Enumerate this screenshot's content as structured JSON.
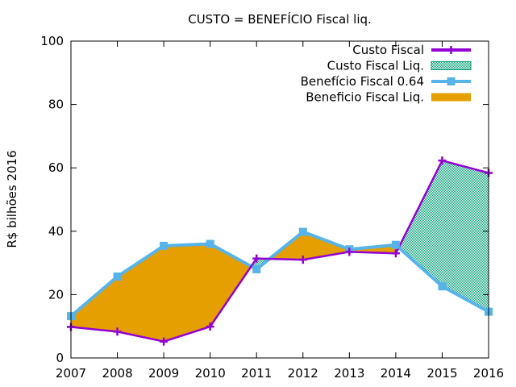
{
  "chart_data": {
    "type": "line",
    "title": "CUSTO = BENEFÍCIO Fiscal liq.",
    "xlabel": "",
    "ylabel": "R$ bilhões 2016",
    "ylim": [
      0,
      100
    ],
    "xlim": [
      2007,
      2016
    ],
    "yticks": [
      "0",
      "20",
      "40",
      "60",
      "80",
      "100"
    ],
    "categories": [
      "2007",
      "2008",
      "2009",
      "2010",
      "2011",
      "2012",
      "2013",
      "2014",
      "2015",
      "2016"
    ],
    "series": [
      {
        "name": "Custo Fiscal",
        "color": "#9400d3",
        "marker": "plus",
        "values": [
          9.8,
          8.3,
          5.2,
          9.9,
          31.4,
          31.0,
          33.5,
          33.0,
          62.3,
          58.4
        ]
      },
      {
        "name": "Benefício Fiscal 0.64",
        "color": "#56b4e9",
        "marker": "square",
        "values": [
          13.2,
          25.7,
          35.4,
          36.0,
          28.0,
          39.8,
          34.3,
          35.7,
          22.6,
          14.6
        ]
      }
    ],
    "fills": [
      {
        "name": "Custo Fiscal Liq.",
        "color": "#009e73",
        "pattern": "checkerboard",
        "when": "custo_above"
      },
      {
        "name": "Beneficio Fiscal Liq.",
        "color": "#e69f00",
        "pattern": "solid",
        "when": "beneficio_above"
      }
    ],
    "legend": {
      "position": "top-right",
      "entries": [
        "Custo Fiscal",
        "Custo Fiscal Liq.",
        "Benefício Fiscal 0.64",
        "Beneficio Fiscal Liq."
      ]
    },
    "grid": false
  }
}
